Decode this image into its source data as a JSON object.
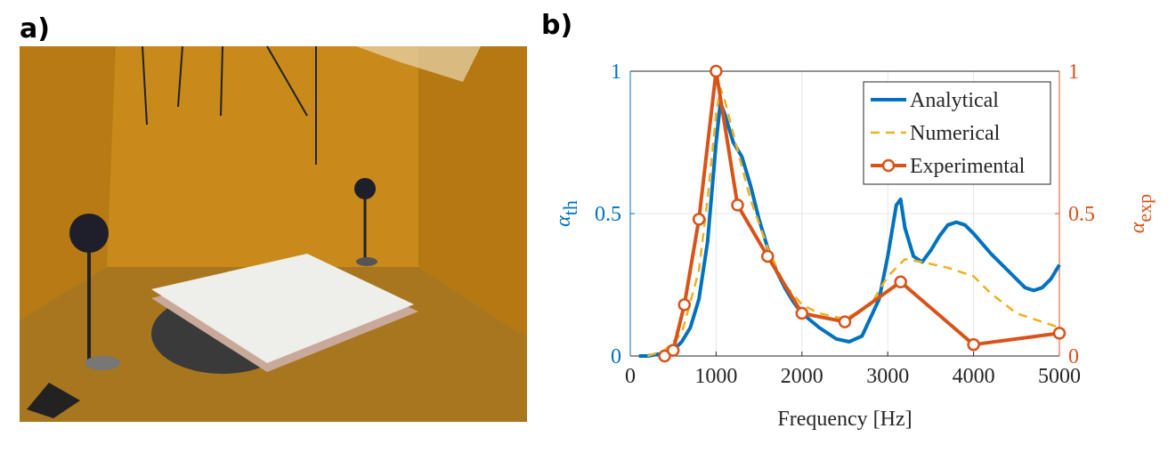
{
  "panel_labels": [
    "a)",
    "b)"
  ],
  "chart_data": {
    "type": "line",
    "xlabel": "Frequency [Hz]",
    "ylabel": {
      "symbol": "α",
      "sub": "th"
    },
    "y2label": {
      "symbol": "α",
      "sub": "exp"
    },
    "xlim": [
      0,
      5000
    ],
    "xticks": [
      0,
      1000,
      2000,
      3000,
      4000,
      5000
    ],
    "ylim": [
      0,
      1
    ],
    "yticks": [
      0,
      0.5,
      1
    ],
    "y2lim": [
      0,
      1
    ],
    "y2ticks": [
      0,
      0.5,
      1
    ],
    "ycolor": "#0072bd",
    "y2color": "#d95319",
    "grid": true,
    "legend": "upper right",
    "series": [
      {
        "name": "Analytical",
        "color": "#0072bd",
        "style": "solid",
        "x": [
          100,
          200,
          300,
          400,
          500,
          600,
          700,
          800,
          900,
          1000,
          1050,
          1100,
          1200,
          1300,
          1400,
          1500,
          1600,
          1700,
          1800,
          1900,
          2000,
          2200,
          2400,
          2550,
          2700,
          2900,
          3000,
          3100,
          3150,
          3200,
          3300,
          3400,
          3500,
          3600,
          3700,
          3800,
          3900,
          4000,
          4200,
          4400,
          4600,
          4700,
          4800,
          4900,
          5000
        ],
        "values": [
          0,
          0,
          0.005,
          0.01,
          0.02,
          0.05,
          0.1,
          0.2,
          0.4,
          0.75,
          0.89,
          0.85,
          0.75,
          0.7,
          0.6,
          0.48,
          0.38,
          0.3,
          0.24,
          0.19,
          0.15,
          0.1,
          0.06,
          0.05,
          0.07,
          0.2,
          0.35,
          0.53,
          0.55,
          0.45,
          0.35,
          0.33,
          0.37,
          0.42,
          0.46,
          0.47,
          0.46,
          0.43,
          0.36,
          0.3,
          0.24,
          0.23,
          0.24,
          0.27,
          0.32
        ]
      },
      {
        "name": "Numerical",
        "color": "#edb120",
        "style": "dashed",
        "x": [
          200,
          400,
          600,
          800,
          900,
          1000,
          1050,
          1100,
          1200,
          1400,
          1600,
          1800,
          2000,
          2200,
          2500,
          2800,
          3000,
          3200,
          3400,
          3700,
          4000,
          4200,
          4500,
          5000
        ],
        "values": [
          0,
          0.02,
          0.08,
          0.3,
          0.55,
          0.85,
          0.94,
          0.9,
          0.78,
          0.55,
          0.38,
          0.25,
          0.18,
          0.15,
          0.13,
          0.18,
          0.28,
          0.34,
          0.33,
          0.31,
          0.28,
          0.22,
          0.15,
          0.1
        ]
      },
      {
        "name": "Experimental",
        "color": "#d95319",
        "style": "solid",
        "marker": "circle",
        "axis": "y2",
        "x": [
          400,
          500,
          630,
          800,
          1000,
          1250,
          1600,
          2000,
          2500,
          3150,
          4000,
          5000
        ],
        "values": [
          0.0,
          0.02,
          0.18,
          0.48,
          1.0,
          0.53,
          0.35,
          0.15,
          0.12,
          0.26,
          0.04,
          0.08
        ]
      }
    ]
  }
}
